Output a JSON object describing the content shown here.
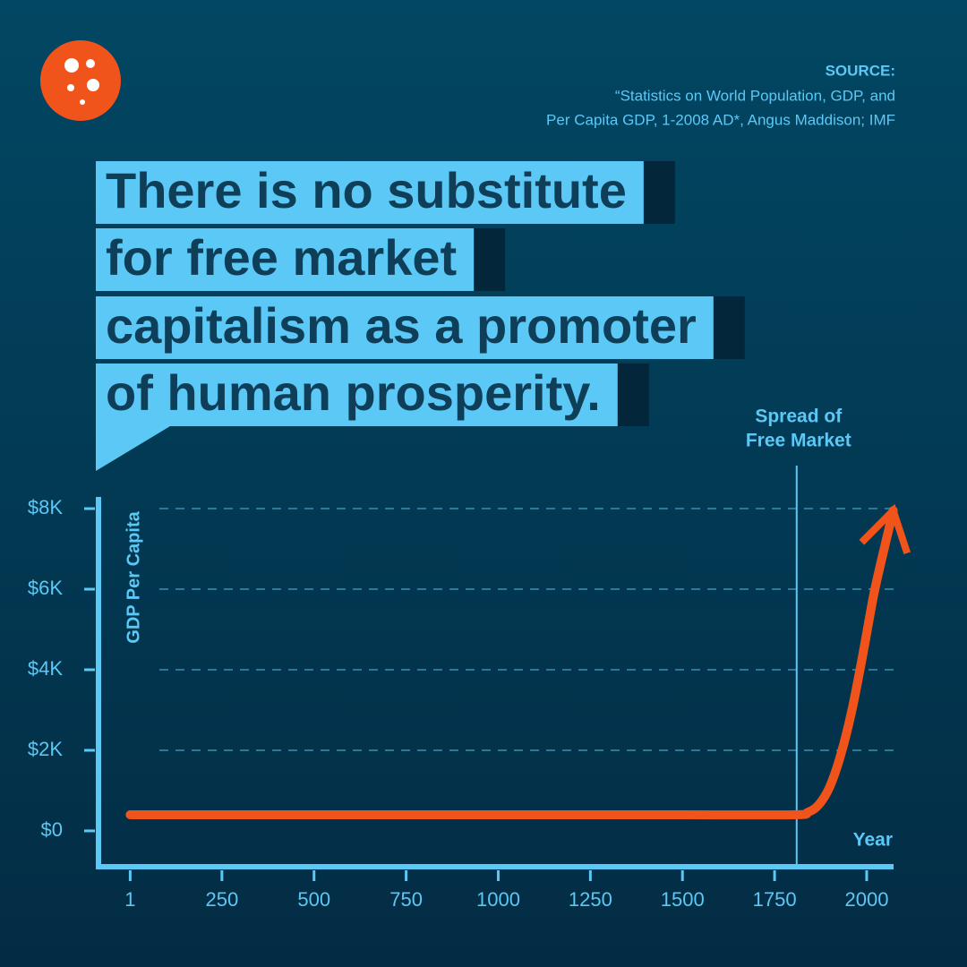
{
  "chart_data": {
    "type": "line",
    "title": [
      "There is no substitute",
      "for free market",
      "capitalism as a promoter",
      "of human prosperity."
    ],
    "source": {
      "label": "SOURCE:",
      "lines": [
        "“Statistics on World Population, GDP, and",
        "Per Capita GDP, 1-2008 AD*, Angus Maddison; IMF"
      ]
    },
    "y_label": "GDP Per Capita",
    "x_label": "Year",
    "xlim": [
      -85,
      2073
    ],
    "ylim": [
      -890,
      8290
    ],
    "xticks": [
      1,
      250,
      500,
      750,
      1000,
      1250,
      1500,
      1750,
      2000
    ],
    "yticks": [
      {
        "value": 0,
        "label": "$0"
      },
      {
        "value": 2000,
        "label": "$2K"
      },
      {
        "value": 4000,
        "label": "$4K"
      },
      {
        "value": 6000,
        "label": "$6K"
      },
      {
        "value": 8000,
        "label": "$8K"
      }
    ],
    "grid": true,
    "annotation": {
      "x": 1810,
      "lines": [
        "Spread of",
        "Free Market"
      ]
    },
    "series": [
      {
        "color": "#f1541b",
        "x": [
          1,
          500,
          1000,
          1500,
          1800,
          1840,
          1870,
          1900,
          1930,
          1960,
          1990,
          2020,
          2050,
          2072
        ],
        "values": [
          400,
          400,
          400,
          400,
          400,
          460,
          650,
          1100,
          1900,
          3000,
          4400,
          5900,
          7100,
          7950
        ]
      }
    ]
  }
}
